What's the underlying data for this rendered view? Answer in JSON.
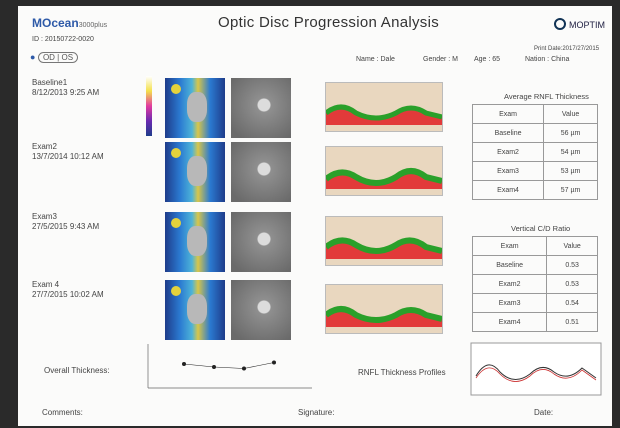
{
  "brand": {
    "name": "MOcean",
    "sub": "3000plus"
  },
  "title": "Optic Disc Progression Analysis",
  "logo_right": "MOPTIM",
  "patient": {
    "id": "ID : 20150722-0020",
    "name": "Name : Dale",
    "gender": "Gender : M",
    "age": "Age : 65",
    "nation": "Nation : China",
    "print_date": "Print Date:2017/27/2015"
  },
  "eye": {
    "od": "OD",
    "os": "OS",
    "marker": "●"
  },
  "exams": [
    {
      "label": "Baseline1",
      "date": "8/12/2013 9:25 AM"
    },
    {
      "label": "Exam2",
      "date": "13/7/2014 10:12 AM"
    },
    {
      "label": "Exam3",
      "date": "27/5/2015 9:43 AM"
    },
    {
      "label": "Exam 4",
      "date": "27/7/2015 10:02 AM"
    }
  ],
  "avg_table": {
    "title": "Average RNFL Thickness",
    "headers": [
      "Exam",
      "Value"
    ],
    "rows": [
      [
        "Baseline",
        "56 µm"
      ],
      [
        "Exam2",
        "54 µm"
      ],
      [
        "Exam3",
        "53 µm"
      ],
      [
        "Exam4",
        "57 µm"
      ]
    ]
  },
  "cd_table": {
    "title": "Vertical C/D Ratio",
    "headers": [
      "Exam",
      "Value"
    ],
    "rows": [
      [
        "Baseline",
        "0.53"
      ],
      [
        "Exam2",
        "0.53"
      ],
      [
        "Exam3",
        "0.54"
      ],
      [
        "Exam4",
        "0.51"
      ]
    ]
  },
  "overall_label": "Overall Thickness:",
  "profile_label": "RNFL Thickness Profiles",
  "comments_label": "Comments:",
  "signature_label": "Signature:",
  "date_label": "Date:",
  "overall_chart": {
    "x": [
      1,
      2,
      3,
      4
    ],
    "y": [
      56,
      54,
      53,
      57
    ]
  }
}
